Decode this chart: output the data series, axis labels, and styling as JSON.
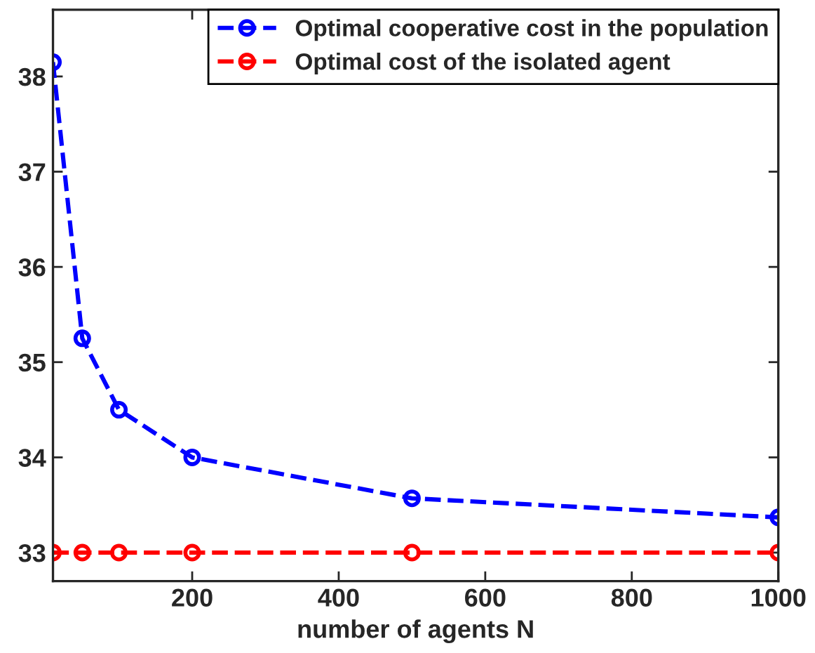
{
  "chart_data": {
    "type": "line",
    "xlabel": "number of agents N",
    "x": [
      10,
      50,
      100,
      200,
      500,
      1000
    ],
    "series": [
      {
        "name": "Optimal cooperative cost in the population",
        "color": "#0000ff",
        "values": [
          38.15,
          35.25,
          34.5,
          34.0,
          33.57,
          33.37
        ]
      },
      {
        "name": "Optimal cost of the isolated agent",
        "color": "#ff0000",
        "values": [
          33.0,
          33.0,
          33.0,
          33.0,
          33.0,
          33.0
        ]
      }
    ],
    "xlim": [
      10,
      1000
    ],
    "xticks": [
      200,
      400,
      600,
      800,
      1000
    ],
    "ylim": [
      32.7,
      38.7
    ],
    "yticks": [
      33,
      34,
      35,
      36,
      37,
      38
    ],
    "marker": "circle",
    "line_style": "dashed",
    "legend": "top right",
    "grid": false
  }
}
